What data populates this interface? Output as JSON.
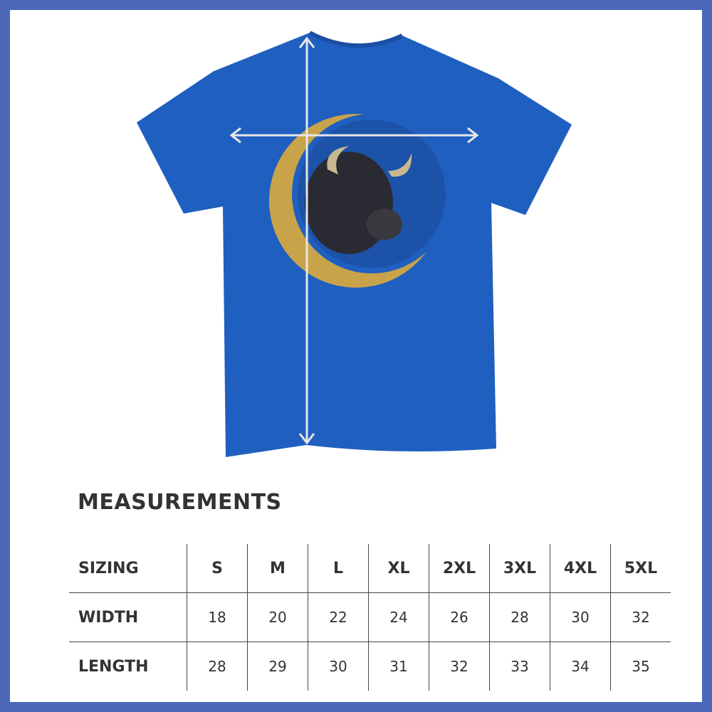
{
  "colors": {
    "frame": "#4a67b8",
    "shirt": "#1f5fc0",
    "measure_arrows": "#e0e0e0",
    "text": "#333333"
  },
  "product": {
    "image": "royal blue t-shirt with bison and celtic crescent moon design",
    "icons": [
      "width-arrow-icon",
      "length-arrow-icon"
    ]
  },
  "measurements": {
    "title": "MEASUREMENTS",
    "rows": [
      {
        "label": "SIZING",
        "values": [
          "S",
          "M",
          "L",
          "XL",
          "2XL",
          "3XL",
          "4XL",
          "5XL"
        ]
      },
      {
        "label": "WIDTH",
        "values": [
          "18",
          "20",
          "22",
          "24",
          "26",
          "28",
          "30",
          "32"
        ]
      },
      {
        "label": "LENGTH",
        "values": [
          "28",
          "29",
          "30",
          "31",
          "32",
          "33",
          "34",
          "35"
        ]
      }
    ]
  }
}
